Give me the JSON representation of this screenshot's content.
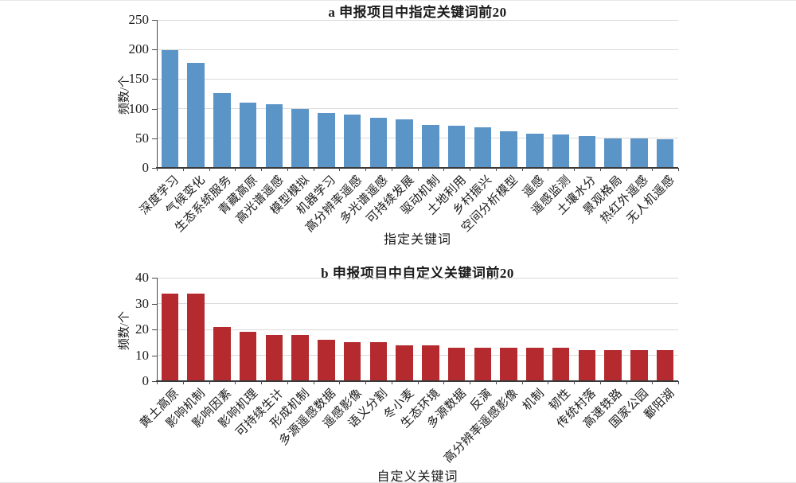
{
  "figure": {
    "background": "#ffffff",
    "text_color": "#1a1a1a",
    "axis_color": "#4a4a4a",
    "gridline_color": "#d9d9d9"
  },
  "chart_data": [
    {
      "type": "bar",
      "panel": "a",
      "title": "a 申报项目中指定关键词前20",
      "xlabel": "指定关键词",
      "ylabel": "频数/个",
      "ylim": [
        0,
        250
      ],
      "yticks": [
        0,
        50,
        100,
        150,
        200,
        250
      ],
      "grid": true,
      "legend": "none",
      "bar_color": "#5B94C7",
      "categories": [
        "深度学习",
        "气候变化",
        "生态系统服务",
        "青藏高原",
        "高光谱遥感",
        "模型模拟",
        "机器学习",
        "高分辨率遥感",
        "多光谱遥感",
        "可持续发展",
        "驱动机制",
        "土地利用",
        "乡村振兴",
        "空间分析模型",
        "遥感",
        "遥感监测",
        "土壤水分",
        "景观格局",
        "热红外遥感",
        "无人机遥感"
      ],
      "values": [
        199,
        178,
        126,
        110,
        107,
        100,
        93,
        90,
        85,
        82,
        73,
        71,
        68,
        62,
        58,
        56,
        54,
        50,
        50,
        48
      ]
    },
    {
      "type": "bar",
      "panel": "b",
      "title": "b 申报项目中自定义关键词前20",
      "xlabel": "自定义关键词",
      "ylabel": "频数/个",
      "ylim": [
        0,
        40
      ],
      "yticks": [
        0,
        10,
        20,
        30,
        40
      ],
      "grid": true,
      "legend": "none",
      "bar_color": "#B42A2E",
      "categories": [
        "黄土高原",
        "影响机制",
        "影响因素",
        "影响机理",
        "可持续生计",
        "形成机制",
        "多源遥感数据",
        "遥感影像",
        "语义分割",
        "冬小麦",
        "生态环境",
        "多源数据",
        "反演",
        "高分辨率遥感影像",
        "机制",
        "韧性",
        "传统村落",
        "高速铁路",
        "国家公园",
        "鄱阳湖"
      ],
      "values": [
        34,
        34,
        21,
        19,
        18,
        18,
        16,
        15,
        15,
        14,
        14,
        13,
        13,
        13,
        13,
        13,
        12,
        12,
        12,
        12
      ]
    }
  ]
}
